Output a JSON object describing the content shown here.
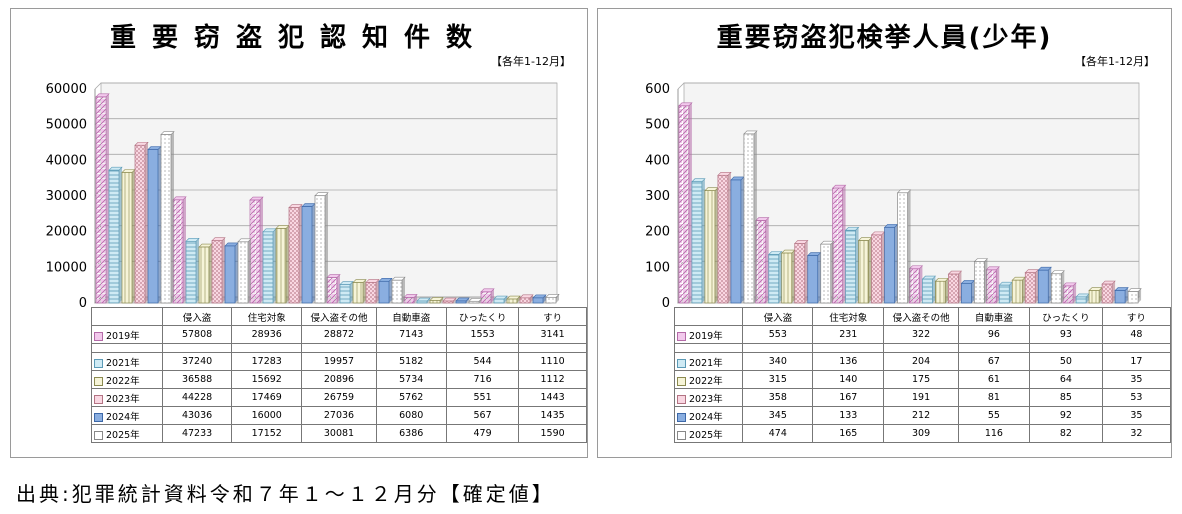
{
  "source_note": "出典:犯罪統計資料令和７年１～１２月分【確定値】",
  "series_styles": [
    {
      "fill": "#f2c9ec",
      "stroke": "#b46aa8",
      "pattern": "diag"
    },
    {
      "fill": "#cfeaf4",
      "stroke": "#5b9ab6",
      "pattern": "hline"
    },
    {
      "fill": "#f6f4d8",
      "stroke": "#8b8a50",
      "pattern": "vline"
    },
    {
      "fill": "#f9d7e2",
      "stroke": "#b37383",
      "pattern": "check"
    },
    {
      "fill": "#8aaee0",
      "stroke": "#3d68a8",
      "pattern": "solid"
    },
    {
      "fill": "#ffffff",
      "stroke": "#888888",
      "pattern": "dots"
    }
  ],
  "chart_data": [
    {
      "type": "bar",
      "title": "重要窃盗犯認知件数",
      "subtitle": "【各年1-12月】",
      "categories": [
        "侵入盗",
        "住宅対象",
        "侵入盗その他",
        "自動車盗",
        "ひったくり",
        "すり"
      ],
      "ylim": [
        0,
        60000
      ],
      "yticks": [
        0,
        10000,
        20000,
        30000,
        40000,
        50000,
        60000
      ],
      "grid": true,
      "series": [
        {
          "name": "2019年",
          "values": [
            57808,
            28936,
            28872,
            7143,
            1553,
            3141
          ]
        },
        {
          "name": "2021年",
          "values": [
            37240,
            17283,
            19957,
            5182,
            544,
            1110
          ]
        },
        {
          "name": "2022年",
          "values": [
            36588,
            15692,
            20896,
            5734,
            716,
            1112
          ]
        },
        {
          "name": "2023年",
          "values": [
            44228,
            17469,
            26759,
            5762,
            551,
            1443
          ]
        },
        {
          "name": "2024年",
          "values": [
            43036,
            16000,
            27036,
            6080,
            567,
            1435
          ]
        },
        {
          "name": "2025年",
          "values": [
            47233,
            17152,
            30081,
            6386,
            479,
            1590
          ]
        }
      ]
    },
    {
      "type": "bar",
      "title": "重要窃盗犯検挙人員(少年)",
      "subtitle": "【各年1-12月】",
      "categories": [
        "侵入盗",
        "住宅対象",
        "侵入盗その他",
        "自動車盗",
        "ひったくり",
        "すり"
      ],
      "ylim": [
        0,
        600
      ],
      "yticks": [
        0,
        100,
        200,
        300,
        400,
        500,
        600
      ],
      "grid": true,
      "series": [
        {
          "name": "2019年",
          "values": [
            553,
            231,
            322,
            96,
            93,
            48
          ]
        },
        {
          "name": "2021年",
          "values": [
            340,
            136,
            204,
            67,
            50,
            17
          ]
        },
        {
          "name": "2022年",
          "values": [
            315,
            140,
            175,
            61,
            64,
            35
          ]
        },
        {
          "name": "2023年",
          "values": [
            358,
            167,
            191,
            81,
            85,
            53
          ]
        },
        {
          "name": "2024年",
          "values": [
            345,
            133,
            212,
            55,
            92,
            35
          ]
        },
        {
          "name": "2025年",
          "values": [
            474,
            165,
            309,
            116,
            82,
            32
          ]
        }
      ]
    }
  ]
}
